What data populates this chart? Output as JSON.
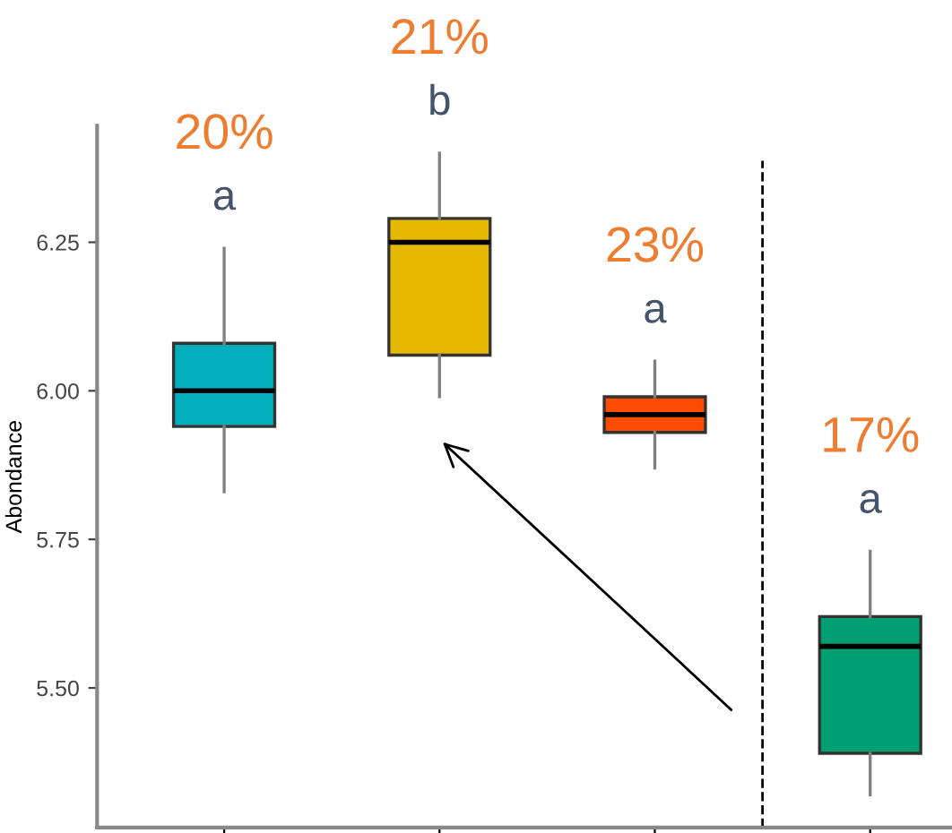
{
  "chart_data": {
    "type": "box",
    "ylabel": "Abondance",
    "categories": [
      null,
      null,
      null,
      null
    ],
    "boxes": [
      {
        "low": 5.83,
        "q1": 5.94,
        "median": 6.0,
        "q3": 6.08,
        "high": 6.24
      },
      {
        "low": 5.99,
        "q1": 6.06,
        "median": 6.25,
        "q3": 6.29,
        "high": 6.4
      },
      {
        "low": 5.87,
        "q1": 5.93,
        "median": 5.96,
        "q3": 5.99,
        "high": 6.05
      },
      {
        "low": 5.32,
        "q1": 5.39,
        "median": 5.57,
        "q3": 5.62,
        "high": 5.73
      }
    ],
    "colors": [
      "#00aebc",
      "#e6b800",
      "#fc4c02",
      "#009e73"
    ],
    "ylim": [
      5.265,
      6.446
    ],
    "yticks": [
      {
        "value": 5.5,
        "label": "5.50"
      },
      5.75,
      {
        "value": 6.0,
        "label": "6.00"
      },
      6.25
    ],
    "tick_labels": "y",
    "grid": false,
    "annotations": [
      "20%",
      "a",
      "21%",
      "b",
      "23%",
      "a",
      "17%",
      "a"
    ]
  }
}
